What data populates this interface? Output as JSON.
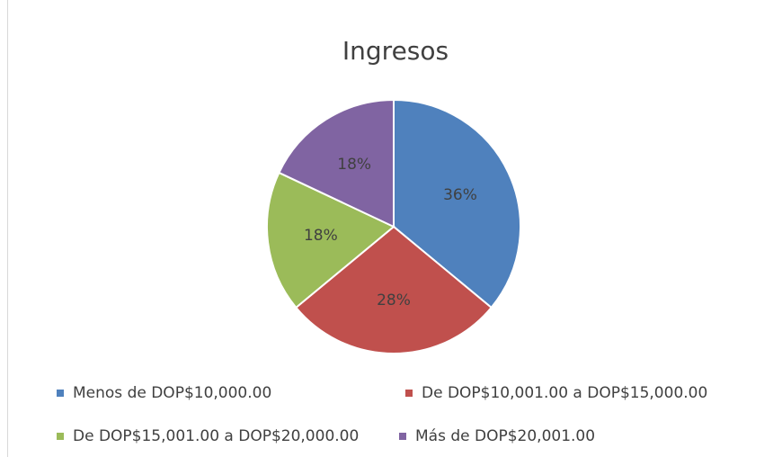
{
  "chart_data": {
    "type": "pie",
    "title": "Ingresos",
    "categories": [
      "Menos de DOP$10,000.00",
      "De DOP$10,001.00 a DOP$15,000.00",
      "De DOP$15,001.00 a DOP$20,000.00",
      "Más de DOP$20,001.00"
    ],
    "values": [
      36,
      28,
      18,
      18
    ],
    "value_labels": [
      "36%",
      "28%",
      "18%",
      "18%"
    ],
    "colors": [
      "#4f81bd",
      "#c0504d",
      "#9bbb59",
      "#8064a2"
    ]
  }
}
